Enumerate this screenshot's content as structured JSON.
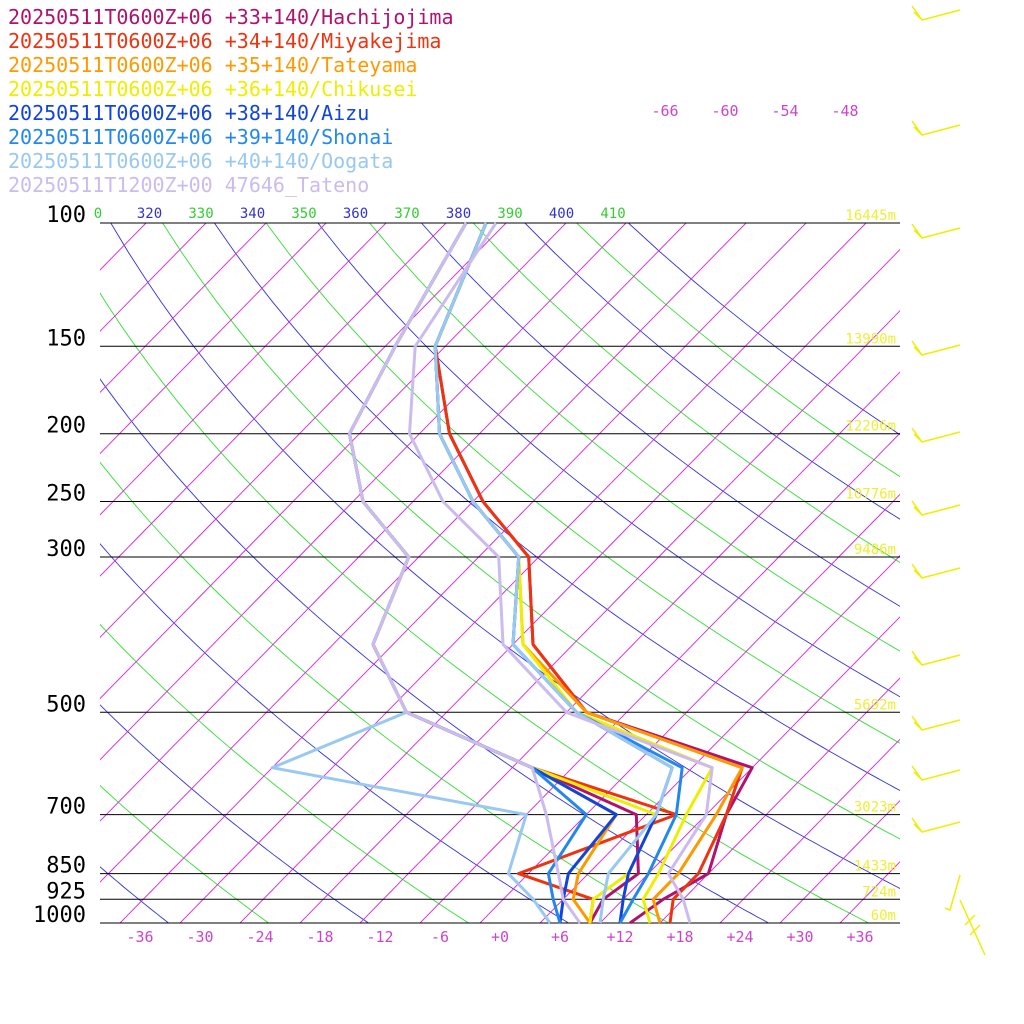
{
  "chart_data": {
    "type": "line",
    "title": "",
    "legend": [
      {
        "label": "20250511T0600Z+06 +33+140/Hachijojima",
        "color": "#b0126f"
      },
      {
        "label": "20250511T0600Z+06 +34+140/Miyakejima",
        "color": "#ee3311"
      },
      {
        "label": "20250511T0600Z+06 +35+140/Tateyama",
        "color": "#ff9900"
      },
      {
        "label": "20250511T0600Z+06 +36+140/Chikusei",
        "color": "#eeee00"
      },
      {
        "label": "20250511T0600Z+06 +38+140/Aizu",
        "color": "#1144dd"
      },
      {
        "label": "20250511T0600Z+06 +39+140/Shonai",
        "color": "#2288ee"
      },
      {
        "label": "20250511T0600Z+06 +40+140/Oogata",
        "color": "#99c8f0"
      },
      {
        "label": "20250511T1200Z+00 47646_Tateno",
        "color": "#ccbbee"
      }
    ],
    "pressure_levels": [
      {
        "p": 100,
        "label": "100",
        "height": "16445m"
      },
      {
        "p": 150,
        "label": "150",
        "height": "13990m"
      },
      {
        "p": 200,
        "label": "200",
        "height": "12206m"
      },
      {
        "p": 250,
        "label": "250",
        "height": "10776m"
      },
      {
        "p": 300,
        "label": "300",
        "height": "9486m"
      },
      {
        "p": 500,
        "label": "500",
        "height": "5692m"
      },
      {
        "p": 700,
        "label": "700",
        "height": "3023m"
      },
      {
        "p": 850,
        "label": "850",
        "height": "1433m"
      },
      {
        "p": 925,
        "label": "925",
        "height": "724m"
      },
      {
        "p": 1000,
        "label": "1000",
        "height": "60m"
      }
    ],
    "x_ticks": [
      "-36",
      "-30",
      "-24",
      "-18",
      "-12",
      "-6",
      "+0",
      "+6",
      "+12",
      "+18",
      "+24",
      "+30",
      "+36"
    ],
    "x_tick_values": [
      -36,
      -30,
      -24,
      -18,
      -12,
      -6,
      0,
      6,
      12,
      18,
      24,
      30,
      36
    ],
    "upper_isotherm_labels": [
      "-66",
      "-60",
      "-54",
      "-48"
    ],
    "theta_labels": [
      {
        "text": "0",
        "color": "#33cc33"
      },
      {
        "text": "320",
        "color": "#3333cc"
      },
      {
        "text": "330",
        "color": "#33cc33"
      },
      {
        "text": "340",
        "color": "#3333cc"
      },
      {
        "text": "350",
        "color": "#33cc33"
      },
      {
        "text": "360",
        "color": "#3333cc"
      },
      {
        "text": "370",
        "color": "#33cc33"
      },
      {
        "text": "380",
        "color": "#3333cc"
      },
      {
        "text": "390",
        "color": "#33cc33"
      },
      {
        "text": "400",
        "color": "#3333cc"
      },
      {
        "text": "410",
        "color": "#33cc33"
      }
    ],
    "colors": {
      "isobar": "#000000",
      "isotherm": "#dd22dd",
      "theta_blue": "#3333dd",
      "theta_green": "#33dd33",
      "height_label": "#eeee33",
      "wind_barb": "#eeee00",
      "tick_label": "#cc44cc"
    },
    "series": [
      {
        "name": "20250511T0600Z+06 +33+140/Hachijojima",
        "color": "#b0126f",
        "temp": [
          [
            1000,
            13
          ],
          [
            925,
            14
          ],
          [
            850,
            16
          ],
          [
            700,
            12
          ],
          [
            600,
            10
          ],
          [
            500,
            -12
          ],
          [
            400,
            -24
          ],
          [
            300,
            -33
          ],
          [
            250,
            -43
          ],
          [
            200,
            -53
          ],
          [
            150,
            -63
          ],
          [
            100,
            -70
          ]
        ],
        "dew": [
          [
            1000,
            9
          ],
          [
            925,
            8
          ],
          [
            850,
            9
          ],
          [
            700,
            3
          ],
          [
            600,
            -12
          ],
          [
            500,
            -30
          ],
          [
            400,
            -40
          ],
          [
            300,
            -45
          ],
          [
            250,
            -55
          ],
          [
            200,
            -63
          ],
          [
            150,
            -67
          ],
          [
            100,
            -72
          ]
        ]
      },
      {
        "name": "20250511T0600Z+06 +34+140/Miyakejima",
        "color": "#ee3311",
        "temp": [
          [
            1000,
            17
          ],
          [
            925,
            15
          ],
          [
            850,
            15
          ],
          [
            700,
            12
          ],
          [
            600,
            9
          ],
          [
            500,
            -12
          ],
          [
            400,
            -24
          ],
          [
            300,
            -33
          ],
          [
            250,
            -43
          ],
          [
            200,
            -53
          ],
          [
            150,
            -63
          ],
          [
            100,
            -70
          ]
        ],
        "dew": [
          [
            1000,
            9
          ],
          [
            925,
            7
          ],
          [
            850,
            -3
          ],
          [
            700,
            7
          ],
          [
            600,
            -12
          ],
          [
            500,
            -30
          ],
          [
            400,
            -40
          ],
          [
            300,
            -45
          ],
          [
            250,
            -55
          ],
          [
            200,
            -63
          ],
          [
            150,
            -67
          ],
          [
            100,
            -72
          ]
        ]
      },
      {
        "name": "20250511T0600Z+06 +35+140/Tateyama",
        "color": "#ff9900",
        "temp": [
          [
            1000,
            16
          ],
          [
            925,
            13
          ],
          [
            850,
            13
          ],
          [
            700,
            11
          ],
          [
            600,
            9
          ],
          [
            500,
            -12
          ],
          [
            400,
            -25
          ],
          [
            300,
            -34
          ],
          [
            250,
            -44
          ],
          [
            200,
            -54
          ],
          [
            150,
            -63
          ],
          [
            100,
            -70
          ]
        ],
        "dew": [
          [
            1000,
            9
          ],
          [
            925,
            5
          ],
          [
            850,
            3
          ],
          [
            700,
            1
          ],
          [
            600,
            -12
          ],
          [
            500,
            -30
          ],
          [
            400,
            -40
          ],
          [
            300,
            -45
          ],
          [
            250,
            -55
          ],
          [
            200,
            -63
          ],
          [
            150,
            -67
          ],
          [
            100,
            -72
          ]
        ]
      },
      {
        "name": "20250511T0600Z+06 +36+140/Chikusei",
        "color": "#eeee00",
        "temp": [
          [
            1000,
            15
          ],
          [
            925,
            12
          ],
          [
            850,
            11
          ],
          [
            700,
            8
          ],
          [
            600,
            6
          ],
          [
            500,
            -13
          ],
          [
            400,
            -25
          ],
          [
            300,
            -34
          ],
          [
            250,
            -44
          ],
          [
            200,
            -54
          ],
          [
            150,
            -63
          ],
          [
            100,
            -70
          ]
        ],
        "dew": [
          [
            1000,
            9
          ],
          [
            925,
            7
          ],
          [
            850,
            8
          ],
          [
            700,
            5
          ],
          [
            600,
            -12
          ],
          [
            500,
            -30
          ],
          [
            400,
            -40
          ],
          [
            300,
            -45
          ],
          [
            250,
            -55
          ],
          [
            200,
            -63
          ],
          [
            150,
            -67
          ],
          [
            100,
            -72
          ]
        ]
      },
      {
        "name": "20250511T0600Z+06 +38+140/Aizu",
        "color": "#1144dd",
        "temp": [
          [
            1000,
            12
          ],
          [
            925,
            10
          ],
          [
            850,
            8
          ],
          [
            700,
            5
          ],
          [
            600,
            2
          ],
          [
            500,
            -13
          ],
          [
            400,
            -26
          ],
          [
            300,
            -34
          ],
          [
            250,
            -44
          ],
          [
            200,
            -54
          ],
          [
            150,
            -63
          ],
          [
            100,
            -70
          ]
        ],
        "dew": [
          [
            1000,
            6
          ],
          [
            925,
            4
          ],
          [
            850,
            2
          ],
          [
            700,
            1
          ],
          [
            600,
            -12
          ],
          [
            500,
            -30
          ],
          [
            400,
            -40
          ],
          [
            300,
            -45
          ],
          [
            250,
            -55
          ],
          [
            200,
            -63
          ],
          [
            150,
            -67
          ],
          [
            100,
            -72
          ]
        ]
      },
      {
        "name": "20250511T0600Z+06 +39+140/Shonai",
        "color": "#2288ee",
        "temp": [
          [
            1000,
            12
          ],
          [
            925,
            11
          ],
          [
            850,
            10
          ],
          [
            700,
            7
          ],
          [
            600,
            3
          ],
          [
            500,
            -13
          ],
          [
            400,
            -26
          ],
          [
            300,
            -34
          ],
          [
            250,
            -44
          ],
          [
            200,
            -54
          ],
          [
            150,
            -63
          ],
          [
            100,
            -70
          ]
        ],
        "dew": [
          [
            1000,
            6
          ],
          [
            925,
            3
          ],
          [
            850,
            0
          ],
          [
            700,
            -2
          ],
          [
            600,
            -12
          ],
          [
            500,
            -30
          ],
          [
            400,
            -40
          ],
          [
            300,
            -45
          ],
          [
            250,
            -55
          ],
          [
            200,
            -63
          ],
          [
            150,
            -67
          ],
          [
            100,
            -72
          ]
        ]
      },
      {
        "name": "20250511T0600Z+06 +40+140/Oogata",
        "color": "#99c8f0",
        "temp": [
          [
            1000,
            10
          ],
          [
            925,
            8
          ],
          [
            850,
            6
          ],
          [
            700,
            5
          ],
          [
            600,
            2
          ],
          [
            500,
            -13
          ],
          [
            400,
            -26
          ],
          [
            300,
            -34
          ],
          [
            250,
            -44
          ],
          [
            200,
            -54
          ],
          [
            150,
            -63
          ],
          [
            100,
            -70
          ]
        ],
        "dew": [
          [
            1000,
            5
          ],
          [
            925,
            1
          ],
          [
            850,
            -4
          ],
          [
            700,
            -8
          ],
          [
            600,
            -38
          ],
          [
            500,
            -30
          ],
          [
            400,
            -40
          ],
          [
            300,
            -45
          ],
          [
            250,
            -55
          ],
          [
            200,
            -63
          ],
          [
            150,
            -67
          ],
          [
            100,
            -72
          ]
        ]
      },
      {
        "name": "20250511T1200Z+00 47646_Tateno",
        "color": "#ccbbee",
        "temp": [
          [
            1000,
            19
          ],
          [
            925,
            16
          ],
          [
            850,
            12
          ],
          [
            700,
            10
          ],
          [
            600,
            6
          ],
          [
            500,
            -14
          ],
          [
            400,
            -27
          ],
          [
            300,
            -36
          ],
          [
            250,
            -47
          ],
          [
            200,
            -57
          ],
          [
            150,
            -65
          ],
          [
            100,
            -69
          ]
        ],
        "dew": [
          [
            1000,
            8
          ],
          [
            925,
            4
          ],
          [
            850,
            1
          ],
          [
            700,
            -6
          ],
          [
            600,
            -12
          ],
          [
            500,
            -30
          ],
          [
            400,
            -40
          ],
          [
            300,
            -45
          ],
          [
            250,
            -55
          ],
          [
            200,
            -63
          ],
          [
            150,
            -67
          ],
          [
            100,
            -72
          ]
        ]
      }
    ],
    "xlim": [
      -40,
      40
    ],
    "ylim": [
      1000,
      100
    ],
    "y_scale": "log"
  }
}
